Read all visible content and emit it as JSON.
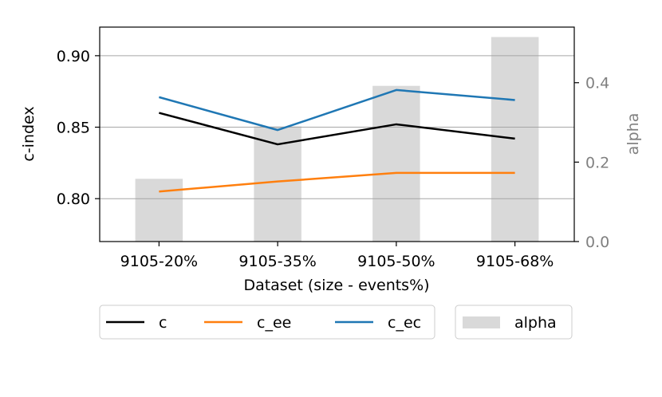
{
  "chart_data": {
    "type": "line",
    "categories": [
      "9105-20%",
      "9105-35%",
      "9105-50%",
      "9105-68%"
    ],
    "xlabel": "Dataset (size - events%)",
    "ylabel": "c-index",
    "y2label": "alpha",
    "ylim": [
      0.77,
      0.92
    ],
    "y2lim": [
      0.0,
      0.54
    ],
    "yticks": [
      "0.80",
      "0.85",
      "0.90"
    ],
    "y2ticks": [
      "0.0",
      "0.2",
      "0.4"
    ],
    "grid": true,
    "series": [
      {
        "name": "c",
        "values": [
          0.86,
          0.838,
          0.852,
          0.842
        ],
        "color": "#000000"
      },
      {
        "name": "c_ee",
        "values": [
          0.805,
          0.812,
          0.818,
          0.818
        ],
        "color": "#ff7f0e"
      },
      {
        "name": "c_ec",
        "values": [
          0.871,
          0.848,
          0.876,
          0.869
        ],
        "color": "#1f77b4"
      }
    ],
    "bars": {
      "name": "alpha",
      "values": [
        0.158,
        0.29,
        0.392,
        0.515
      ],
      "color": "#d9d9d9"
    },
    "legend_placement": "bottom"
  }
}
